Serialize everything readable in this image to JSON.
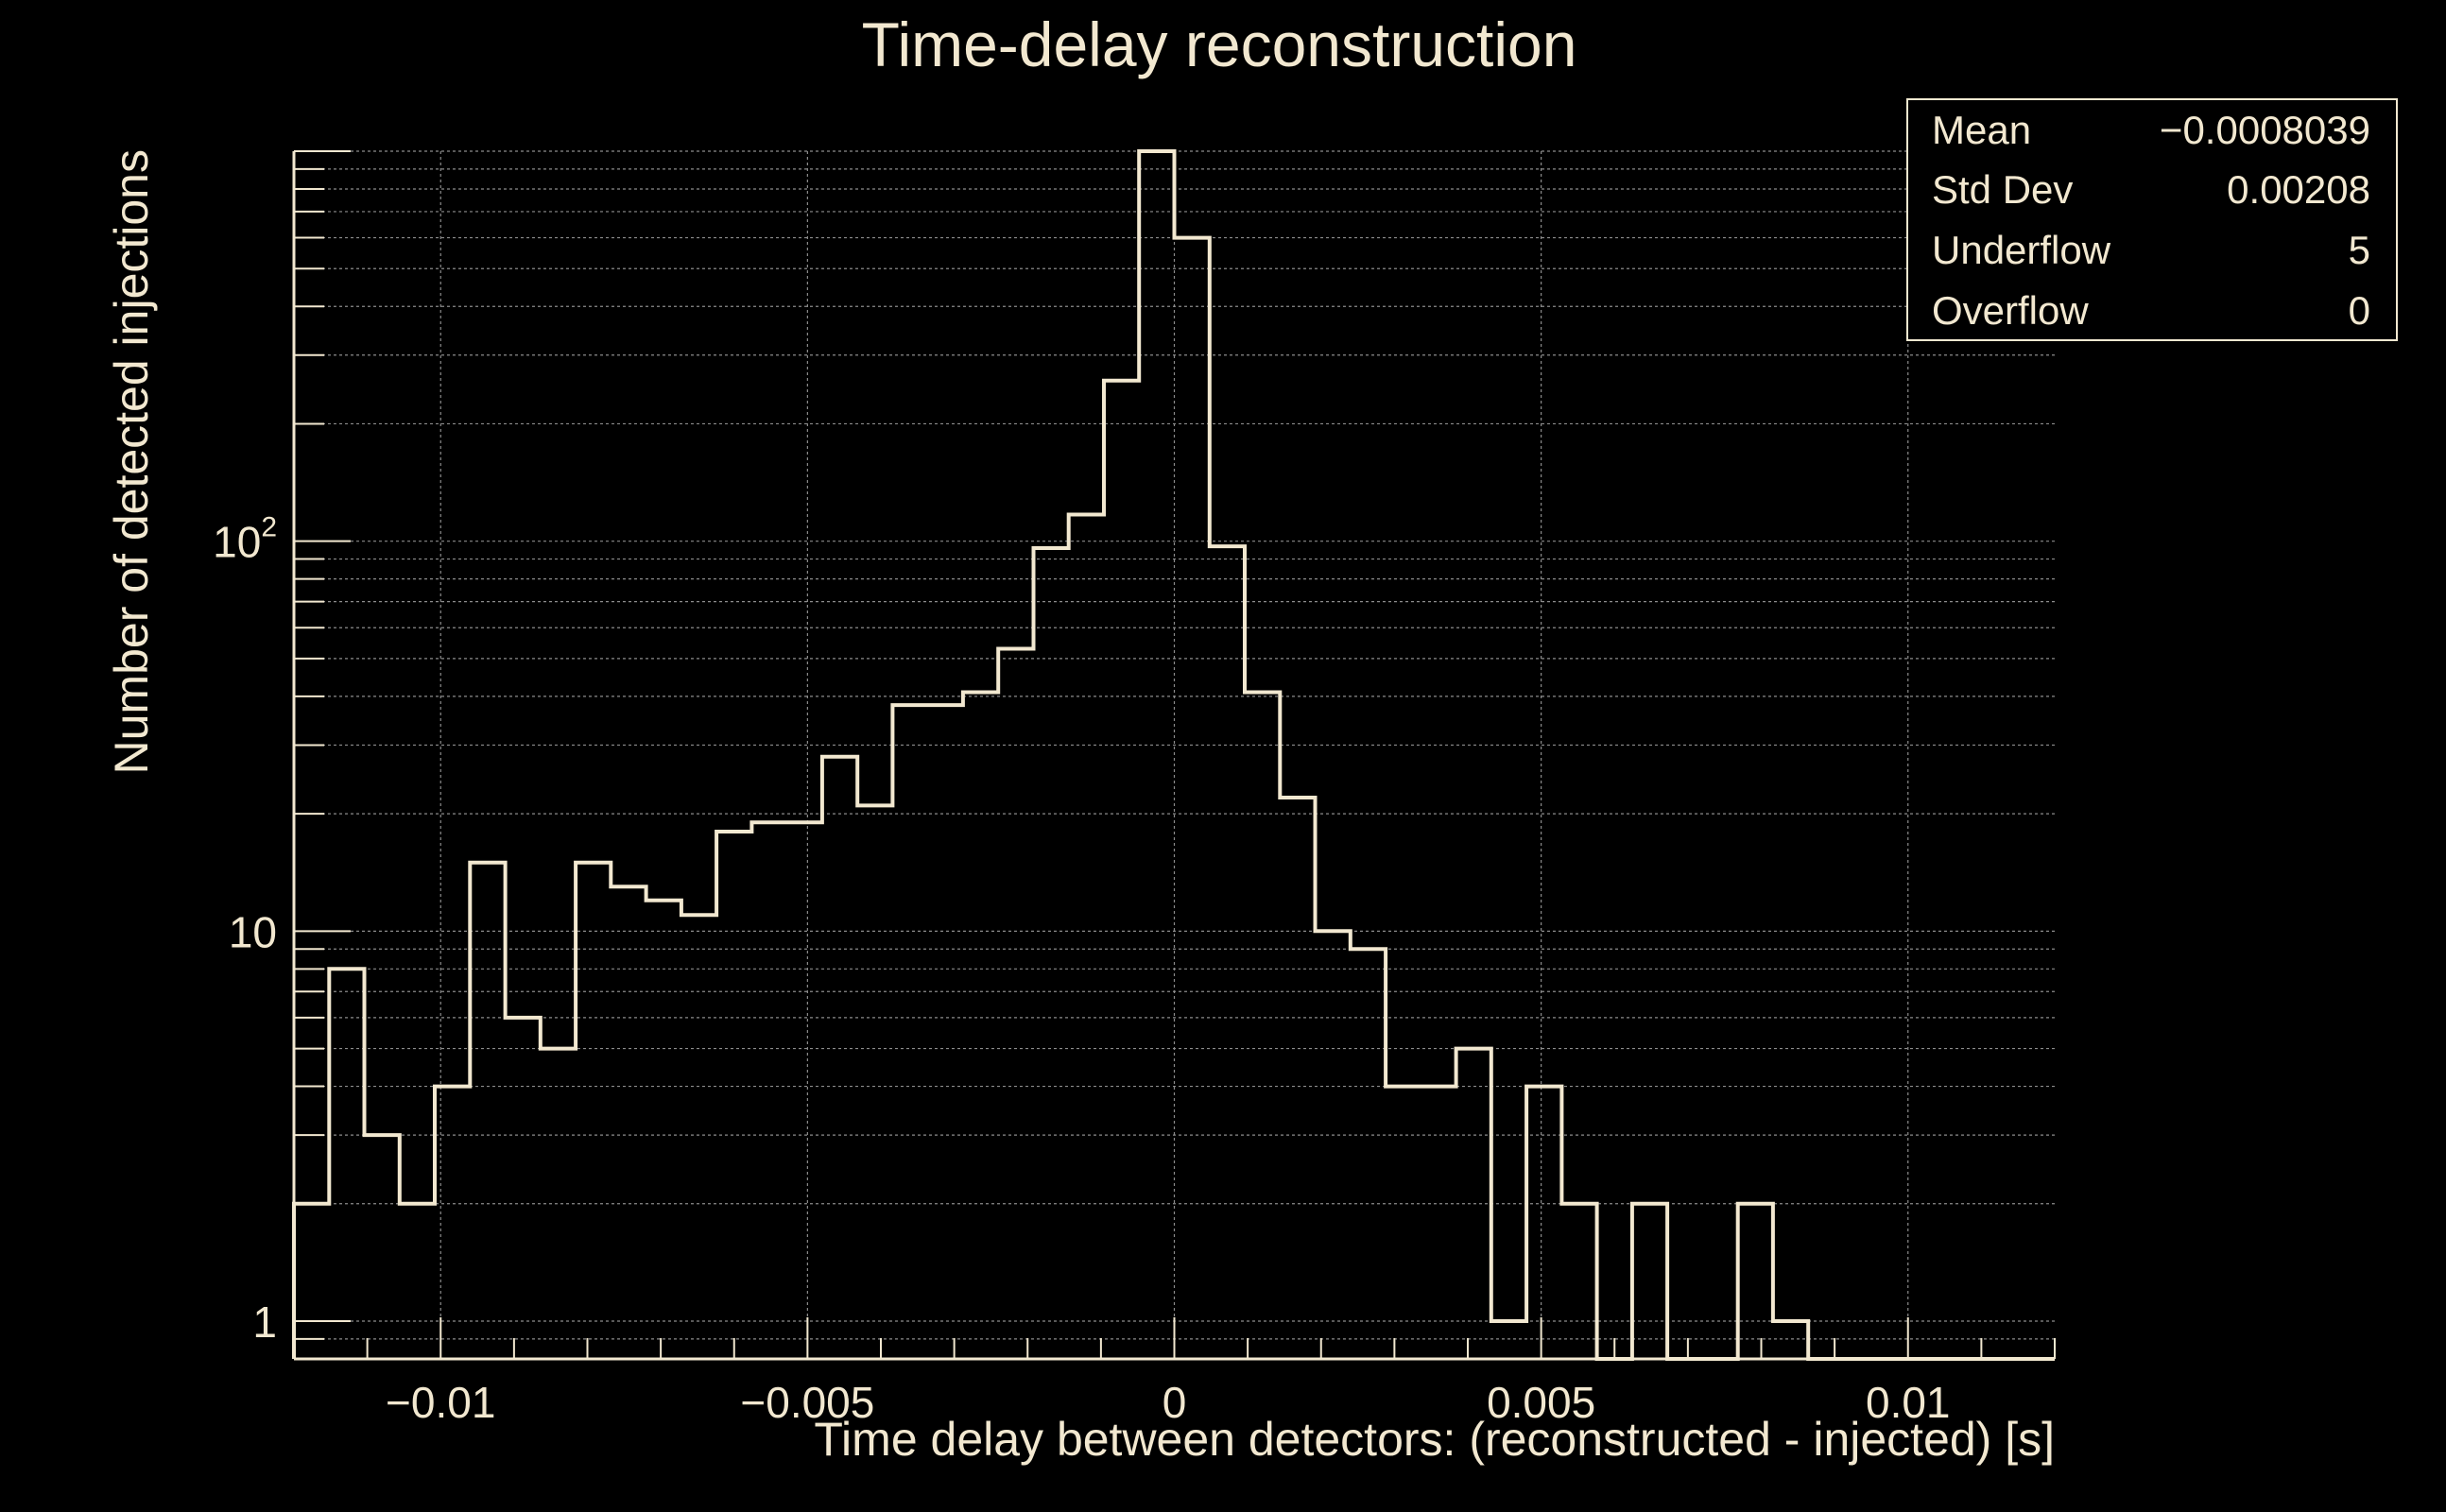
{
  "colors": {
    "background": "#000000",
    "foreground": "#f2e8d0",
    "grid": "#8c8c8c"
  },
  "chart_data": {
    "type": "histogram",
    "title": "Time-delay reconstruction",
    "xlabel": "Time delay between detectors: (reconstructed - injected) [s]",
    "ylabel": "Number of detected injections",
    "xlim": [
      -0.012,
      0.012
    ],
    "ylim": [
      0.8,
      1000
    ],
    "yscale": "log",
    "grid": true,
    "x_ticks": [
      -0.01,
      -0.005,
      0,
      0.005,
      0.01
    ],
    "x_tick_labels": [
      "−0.01",
      "−0.005",
      "0",
      "0.005",
      "0.01"
    ],
    "y_ticks": [
      {
        "value": 1,
        "base": "1",
        "sup": ""
      },
      {
        "value": 10,
        "base": "10",
        "sup": ""
      },
      {
        "value": 100,
        "base": "10",
        "sup": "2"
      }
    ],
    "bin_edges": [
      -0.012,
      -0.01152,
      -0.01104,
      -0.01056,
      -0.01008,
      -0.0096,
      -0.00912,
      -0.00864,
      -0.00816,
      -0.00768,
      -0.0072,
      -0.00672,
      -0.00624,
      -0.00576,
      -0.00528,
      -0.0048,
      -0.00432,
      -0.00384,
      -0.00336,
      -0.00288,
      -0.0024,
      -0.00192,
      -0.00144,
      -0.00096,
      -0.00048,
      0.0,
      0.00048,
      0.00096,
      0.00144,
      0.00192,
      0.0024,
      0.00288,
      0.00336,
      0.00384,
      0.00432,
      0.0048,
      0.00528,
      0.00576,
      0.00624,
      0.00672,
      0.0072,
      0.00768,
      0.00816,
      0.00864,
      0.00912,
      0.0096,
      0.01008,
      0.01056,
      0.01104,
      0.01152,
      0.012
    ],
    "counts": [
      2,
      8,
      3,
      2,
      4,
      15,
      6,
      5,
      15,
      13,
      12,
      11,
      18,
      19,
      19,
      28,
      21,
      38,
      38,
      41,
      53,
      96,
      117,
      258,
      1000,
      600,
      97,
      41,
      22,
      10,
      9,
      4,
      4,
      5,
      1,
      4,
      2,
      0,
      2,
      0,
      0,
      2,
      1,
      0,
      0,
      0,
      0,
      0,
      0,
      0
    ],
    "stats": [
      {
        "label": "Mean",
        "value": "−0.0008039"
      },
      {
        "label": "Std Dev",
        "value": "0.00208"
      },
      {
        "label": "Underflow",
        "value": "5"
      },
      {
        "label": "Overflow",
        "value": "0"
      }
    ]
  }
}
